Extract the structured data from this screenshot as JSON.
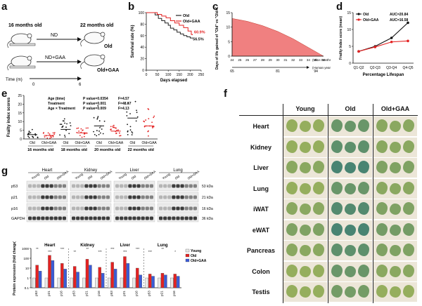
{
  "panels": {
    "a": "a",
    "b": "b",
    "c": "c",
    "d": "d",
    "e": "e",
    "f": "f",
    "g": "g"
  },
  "panel_a": {
    "start_age": "16 months old",
    "end_age": "22 months old",
    "arm_top": "ND",
    "arm_bottom": "ND+GAA",
    "group_top": "Old",
    "group_bottom": "Old+GAA",
    "time_label": "Time (m)",
    "time_start": "0",
    "time_end": "6"
  },
  "panel_b": {
    "chart_data": {
      "type": "line",
      "title": "",
      "xlabel": "Days elapsed",
      "ylabel": "Survival rate (%)",
      "xlim": [
        0,
        250
      ],
      "ylim": [
        0,
        100
      ],
      "xticks": [
        "0",
        "50",
        "100",
        "150",
        "200",
        "250"
      ],
      "yticks": [
        "0",
        "20",
        "40",
        "60",
        "80",
        "100"
      ],
      "legend_position": "top-right",
      "series": [
        {
          "name": "Old",
          "color": "#222222",
          "x": [
            0,
            40,
            55,
            70,
            85,
            100,
            110,
            125,
            140,
            155,
            170,
            185,
            200,
            210
          ],
          "y": [
            100,
            96,
            90,
            86,
            82,
            78,
            73,
            70,
            66,
            63,
            60,
            58,
            56,
            56.5
          ]
        },
        {
          "name": "Old+GAA",
          "color": "#e32222",
          "x": [
            0,
            50,
            70,
            90,
            110,
            130,
            150,
            170,
            190,
            205,
            210
          ],
          "y": [
            100,
            97,
            94,
            91,
            86,
            82,
            78,
            74,
            68,
            62,
            60.9
          ]
        }
      ],
      "annotations": [
        "60.9%",
        "56.5%"
      ]
    }
  },
  "panel_c": {
    "chart_data": {
      "type": "area",
      "title": "",
      "ylabel": "Days of life gained of \"Old\" vs \"Old+GAA\"",
      "x_mice_label": "(Mice months)",
      "x_human_label": "(Human years)",
      "x_mice_ticks": [
        "24",
        "25",
        "26",
        "27",
        "28",
        "29",
        "30",
        "31",
        "32",
        "33",
        "34",
        "35",
        "36"
      ],
      "x_human_ticks": [
        "65",
        "81",
        "94"
      ],
      "ylim": [
        0,
        15
      ],
      "yticks": [
        "0",
        "5",
        "10",
        "15"
      ],
      "x": [
        24,
        26,
        28,
        30,
        32,
        34,
        36
      ],
      "y": [
        13,
        12,
        10.5,
        8.5,
        6,
        3,
        0
      ],
      "color": "#f08080"
    }
  },
  "panel_d": {
    "chart_data": {
      "type": "line",
      "title": "",
      "xlabel": "Percentage Lifespan",
      "ylabel": "Frailty Index score (mean)",
      "categories": [
        "Q1-Q2",
        "Q2-Q3",
        "Q3-Q4",
        "Q4-Q5"
      ],
      "ylim": [
        0,
        15
      ],
      "yticks": [
        "0",
        "5",
        "10",
        "15"
      ],
      "legend_position": "top-left",
      "series": [
        {
          "name": "Old",
          "color": "#111111",
          "values": [
            3.5,
            5.0,
            7.5,
            12.0
          ]
        },
        {
          "name": "Old+GAA",
          "color": "#e32222",
          "values": [
            3.5,
            4.8,
            6.3,
            6.6
          ]
        }
      ],
      "annotations": [
        "AUC=20.84",
        "AUC=16.58"
      ]
    }
  },
  "panel_e": {
    "ylabel": "Frailty index scores",
    "yticks": [
      "0",
      "5",
      "10",
      "15",
      "20",
      "25"
    ],
    "stats": [
      {
        "label": "Age (time)",
        "p": "P value=0.0354",
        "f": "F=4.57"
      },
      {
        "label": "Treatment",
        "p": "P value=0.001",
        "f": "F=48.67"
      },
      {
        "label": "Age × Treatment",
        "p": "P value=0.009",
        "f": "F=4.13"
      }
    ],
    "groups": [
      {
        "age": "16 months old",
        "a": "Old",
        "b": "Old+GAA"
      },
      {
        "age": "18 months old",
        "a": "Old",
        "b": "Old+GAA"
      },
      {
        "age": "20 months old",
        "a": "Old",
        "b": "Old+GAA"
      },
      {
        "age": "22 months old",
        "a": "Old",
        "b": "Old+GAA"
      }
    ],
    "chart_data": {
      "type": "scatter",
      "title": "",
      "ylabel": "Frailty index scores",
      "ylim": [
        0,
        25
      ],
      "categories": [
        "16 months old Old",
        "16 months old Old+GAA",
        "18 months old Old",
        "18 months old Old+GAA",
        "20 months old Old",
        "20 months old Old+GAA",
        "22 months old Old",
        "22 months old Old+GAA"
      ],
      "means": [
        2.5,
        2.0,
        5.5,
        3.5,
        7.5,
        4.5,
        12.0,
        7.5
      ],
      "colors": [
        "#111111",
        "#e32222",
        "#111111",
        "#e32222",
        "#111111",
        "#e32222",
        "#111111",
        "#e32222"
      ]
    }
  },
  "panel_f": {
    "columns": [
      "Young",
      "Old",
      "Old+GAA"
    ],
    "rows": [
      "Heart",
      "Kidney",
      "Liver",
      "Lung",
      "iWAT",
      "eWAT",
      "Pancreas",
      "Colon",
      "Testis"
    ],
    "stain_levels": [
      [
        0.1,
        0.5,
        0.2
      ],
      [
        0.1,
        0.6,
        0.2
      ],
      [
        0.2,
        0.8,
        0.3
      ],
      [
        0.1,
        0.5,
        0.2
      ],
      [
        0.2,
        0.7,
        0.3
      ],
      [
        0.3,
        0.8,
        0.4
      ],
      [
        0.2,
        0.6,
        0.3
      ],
      [
        0.1,
        0.5,
        0.2
      ],
      [
        0.1,
        0.4,
        0.1
      ]
    ]
  },
  "panel_g": {
    "tissues": [
      "Heart",
      "Kidney",
      "Liver",
      "Lung"
    ],
    "lanes": [
      "Young",
      "Old",
      "Old+GAA"
    ],
    "proteins": [
      "p53",
      "p21",
      "p16",
      "GAPDH"
    ],
    "sizes": [
      "53 kDa",
      "21 kDa",
      "16 kDa",
      "36 kDa"
    ],
    "bar_legend": [
      "Young",
      "Old",
      "Old+GAA"
    ],
    "bar_colors": [
      "#e8e8e8",
      "#e32222",
      "#3b5bd6"
    ],
    "ylabel": "Protein expression (fold change)",
    "yticks": [
      "0.1",
      "1",
      "10",
      "100",
      "1000"
    ],
    "markers": [
      "p53",
      "p21",
      "p16"
    ],
    "sig": [
      "**",
      "***",
      "***",
      "**",
      "**",
      "***",
      "***",
      "***",
      "***",
      "***",
      "**",
      "*"
    ],
    "chart_data": {
      "type": "bar",
      "title": "",
      "ylabel": "Protein expression (fold change)",
      "log_scale": true,
      "ylim": [
        0.1,
        1000
      ],
      "categories": [
        "Heart p53",
        "Heart p21",
        "Heart p16",
        "Kidney p53",
        "Kidney p21",
        "Kidney p16",
        "Liver p53",
        "Liver p21",
        "Liver p16",
        "Lung p53",
        "Lung p21",
        "Lung p16"
      ],
      "series": [
        {
          "name": "Young",
          "values": [
            1,
            1,
            1,
            1,
            1,
            1,
            1,
            1,
            1,
            1,
            1,
            1
          ]
        },
        {
          "name": "Old",
          "values": [
            20,
            200,
            30,
            15,
            80,
            12,
            40,
            150,
            10,
            2.5,
            3,
            2.5
          ]
        },
        {
          "name": "Old+GAA",
          "values": [
            5,
            60,
            8,
            4,
            20,
            3,
            8,
            30,
            2,
            1.5,
            2,
            1.5
          ]
        }
      ]
    }
  }
}
